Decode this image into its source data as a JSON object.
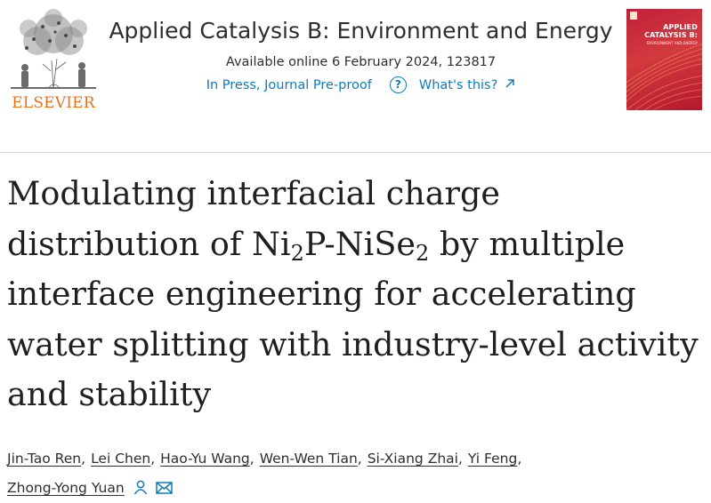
{
  "header": {
    "publisher_name": "ELSEVIER",
    "journal_title": "Applied Catalysis B: Environment and Energy",
    "available_online": "Available online 6 February 2024, 123817",
    "status": "In Press, Journal Pre-proof",
    "help_link": "What's this?",
    "cover": {
      "title": "APPLIED CATALYSIS B:",
      "subtitle": "ENVIRONMENT AND ENERGY"
    }
  },
  "article": {
    "title_parts": {
      "p1": "Modulating interfacial charge distribution of Ni",
      "s1": "2",
      "p2": "P-NiSe",
      "s2": "2",
      "p3": " by multiple interface engineering for accelerating water splitting with industry-level activity and stability"
    }
  },
  "authors": [
    "Jin-Tao Ren",
    "Lei Chen",
    "Hao-Yu Wang",
    "Wen-Wen Tian",
    "Si-Xiang Zhai",
    "Yi Feng",
    "Zhong-Yong Yuan"
  ],
  "author_separator": ",",
  "icons": {
    "help": "question-circle-icon",
    "external_link": "arrow-up-right-icon",
    "corresponding_author": "person-icon",
    "email": "envelope-icon"
  },
  "colors": {
    "link_blue": "#0c7dbb",
    "elsevier_orange": "#e9711c",
    "cover_red": "#c0213a",
    "text": "#1f1f1f"
  }
}
